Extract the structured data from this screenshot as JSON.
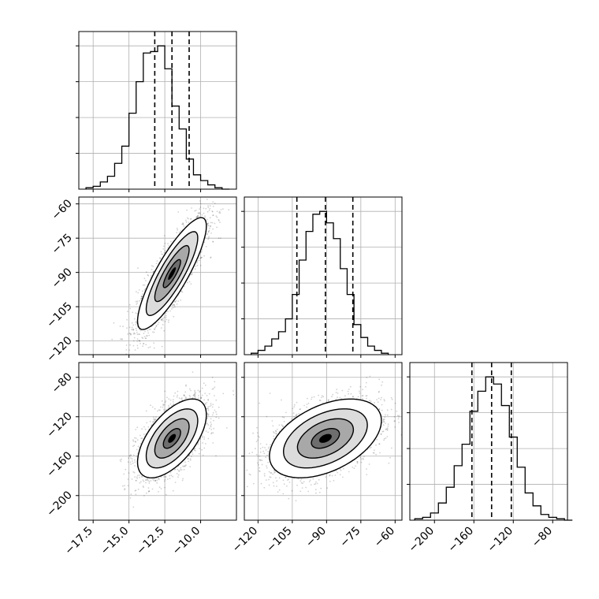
{
  "chart_data": {
    "type": "corner",
    "colors": {
      "line": "#000000",
      "grid": "#b0b0b0",
      "points": "#000000"
    },
    "grid": true,
    "parameters": [
      {
        "range": [
          -18.5,
          -7.5
        ],
        "ticks": [
          -17.5,
          -15.0,
          -12.5,
          -10.0
        ],
        "tick_labels": [
          "−17.5",
          "−15.0",
          "−12.5",
          "−10.0"
        ]
      },
      {
        "range": [
          -126,
          -57
        ],
        "ticks": [
          -120,
          -105,
          -90,
          -75,
          -60
        ],
        "tick_labels": [
          "−120",
          "−105",
          "−90",
          "−75",
          "−60"
        ]
      },
      {
        "range": [
          -225,
          -65
        ],
        "ticks": [
          -200,
          -160,
          -120,
          -80
        ],
        "tick_labels": [
          "−200",
          "−160",
          "−120",
          "−80"
        ]
      }
    ],
    "histograms": [
      {
        "bin_edges": [
          -18.0,
          -17.5,
          -17.0,
          -16.5,
          -16.0,
          -15.5,
          -15.0,
          -14.5,
          -14.0,
          -13.5,
          -13.0,
          -12.5,
          -12.0,
          -11.5,
          -11.0,
          -10.5,
          -10.0,
          -9.5,
          -9.0,
          -8.5,
          -8.0
        ],
        "counts": [
          0.01,
          0.02,
          0.05,
          0.09,
          0.18,
          0.3,
          0.53,
          0.75,
          0.95,
          0.96,
          1.0,
          0.84,
          0.58,
          0.42,
          0.21,
          0.1,
          0.06,
          0.03,
          0.01,
          0.0
        ],
        "quantiles": [
          -13.2,
          -12.0,
          -10.8
        ]
      },
      {
        "bin_edges": [
          -123,
          -120,
          -117,
          -114,
          -111,
          -108,
          -105,
          -102,
          -99,
          -96,
          -93,
          -90,
          -87,
          -84,
          -81,
          -78,
          -75,
          -72,
          -69,
          -66,
          -63
        ],
        "counts": [
          0.01,
          0.03,
          0.06,
          0.11,
          0.16,
          0.25,
          0.42,
          0.66,
          0.86,
          0.98,
          1.0,
          0.92,
          0.81,
          0.6,
          0.42,
          0.21,
          0.12,
          0.06,
          0.03,
          0.01
        ],
        "quantiles": [
          -103.0,
          -90.5,
          -78.5
        ]
      },
      {
        "bin_edges": [
          -220,
          -212,
          -204,
          -196,
          -188,
          -180,
          -172,
          -164,
          -156,
          -148,
          -140,
          -132,
          -124,
          -116,
          -108,
          -100,
          -92,
          -84,
          -76,
          -68,
          -60
        ],
        "counts": [
          0.01,
          0.02,
          0.05,
          0.12,
          0.23,
          0.38,
          0.53,
          0.76,
          0.9,
          1.0,
          0.95,
          0.8,
          0.58,
          0.37,
          0.19,
          0.1,
          0.04,
          0.02,
          0.01,
          0.0
        ],
        "quantiles": [
          -162,
          -142,
          -122
        ]
      }
    ],
    "correlations": {
      "1-0": 0.85,
      "2-0": 0.6,
      "2-1": 0.45
    },
    "scatter_points": 2500,
    "contour_levels": [
      0.118,
      0.393,
      0.675,
      0.865
    ]
  }
}
